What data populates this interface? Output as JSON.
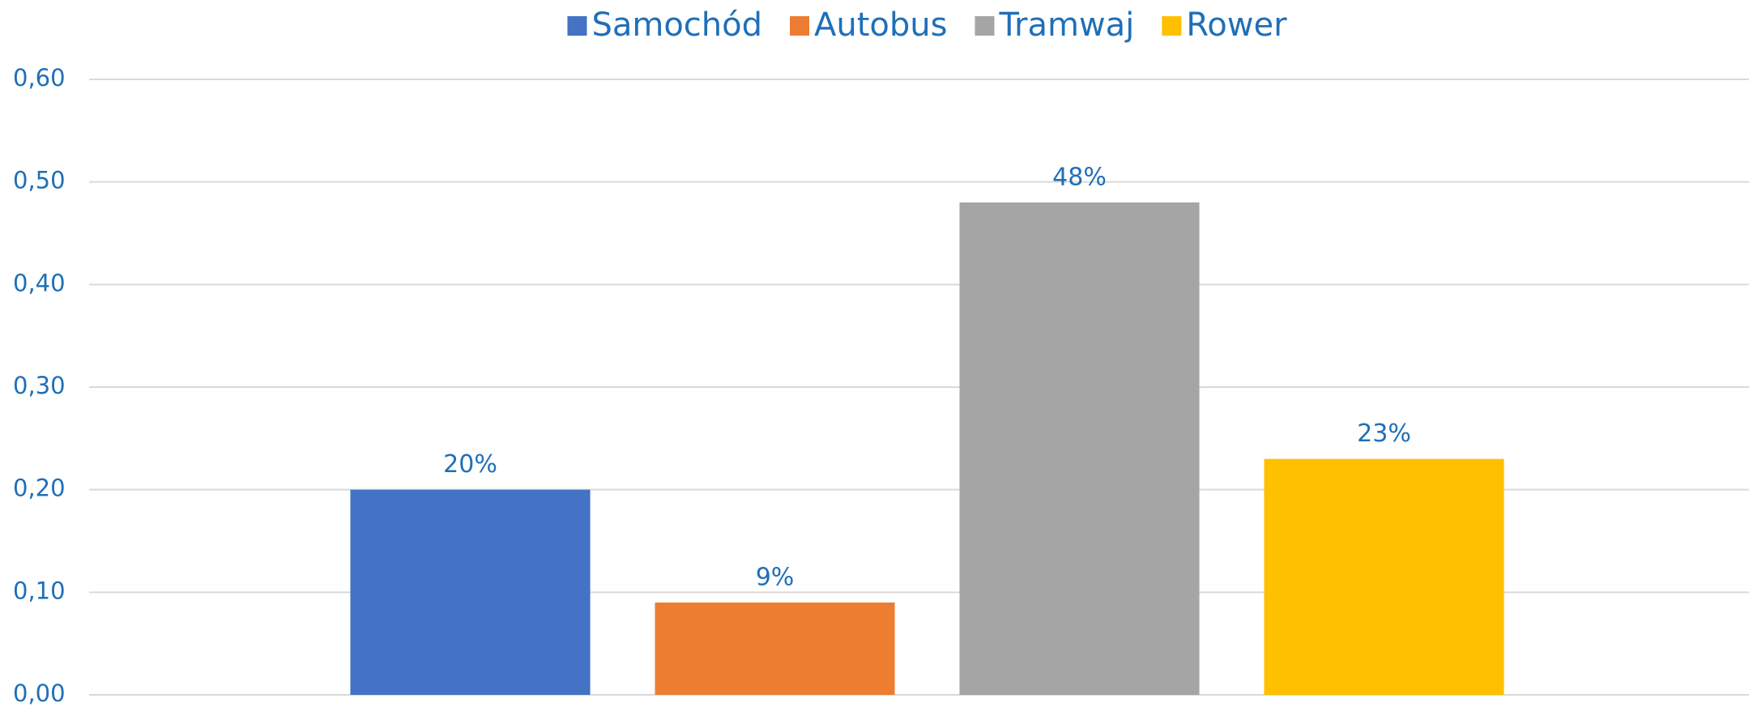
{
  "chart_data": {
    "type": "bar",
    "categories": [
      null
    ],
    "series": [
      {
        "name": "Samochód",
        "color": "#4472c4",
        "values": [
          0.2
        ],
        "value_labels": [
          "20%"
        ]
      },
      {
        "name": "Autobus",
        "color": "#ed7d31",
        "values": [
          0.09
        ],
        "value_labels": [
          "9%"
        ]
      },
      {
        "name": "Tramwaj",
        "color": "#a5a5a5",
        "values": [
          0.48
        ],
        "value_labels": [
          "48%"
        ]
      },
      {
        "name": "Rower",
        "color": "#ffc000",
        "values": [
          0.23
        ],
        "value_labels": [
          "23%"
        ]
      }
    ],
    "ylim": [
      0,
      0.6
    ],
    "yticks": [
      {
        "value": 0,
        "label": "0,00"
      },
      {
        "value": 0.1,
        "label": "0,10"
      },
      {
        "value": 0.2,
        "label": "0,20"
      },
      {
        "value": 0.3,
        "label": "0,30"
      },
      {
        "value": 0.4,
        "label": "0,40"
      },
      {
        "value": 0.5,
        "label": "0,50"
      },
      {
        "value": 0.6,
        "label": "0,60"
      }
    ],
    "grid": true,
    "legend": "top"
  }
}
